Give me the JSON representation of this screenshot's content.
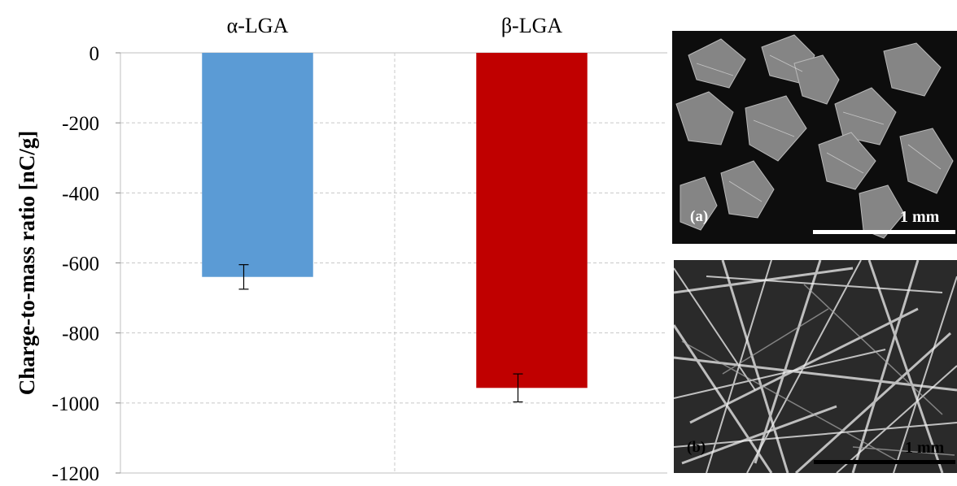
{
  "chart_data": {
    "type": "bar",
    "categories": [
      "α-LGA",
      "β-LGA"
    ],
    "values": [
      -640,
      -957
    ],
    "error": [
      35,
      40
    ],
    "colors": [
      "#5B9BD5",
      "#C00000"
    ],
    "title": "",
    "xlabel": "",
    "ylabel": "Charge-to-mass ratio [nC/g]",
    "ylim": [
      -1200,
      0
    ],
    "yticks": [
      0,
      -200,
      -400,
      -600,
      -800,
      -1000,
      -1200
    ],
    "grid": true,
    "category_labels_position": "top"
  },
  "panels": [
    {
      "label": "(a)",
      "scale": "1 mm",
      "label_color": "#ffffff",
      "scale_color": "#ffffff"
    },
    {
      "label": "(b)",
      "scale": "1 mm",
      "label_color": "#000000",
      "scale_color": "#000000"
    }
  ]
}
